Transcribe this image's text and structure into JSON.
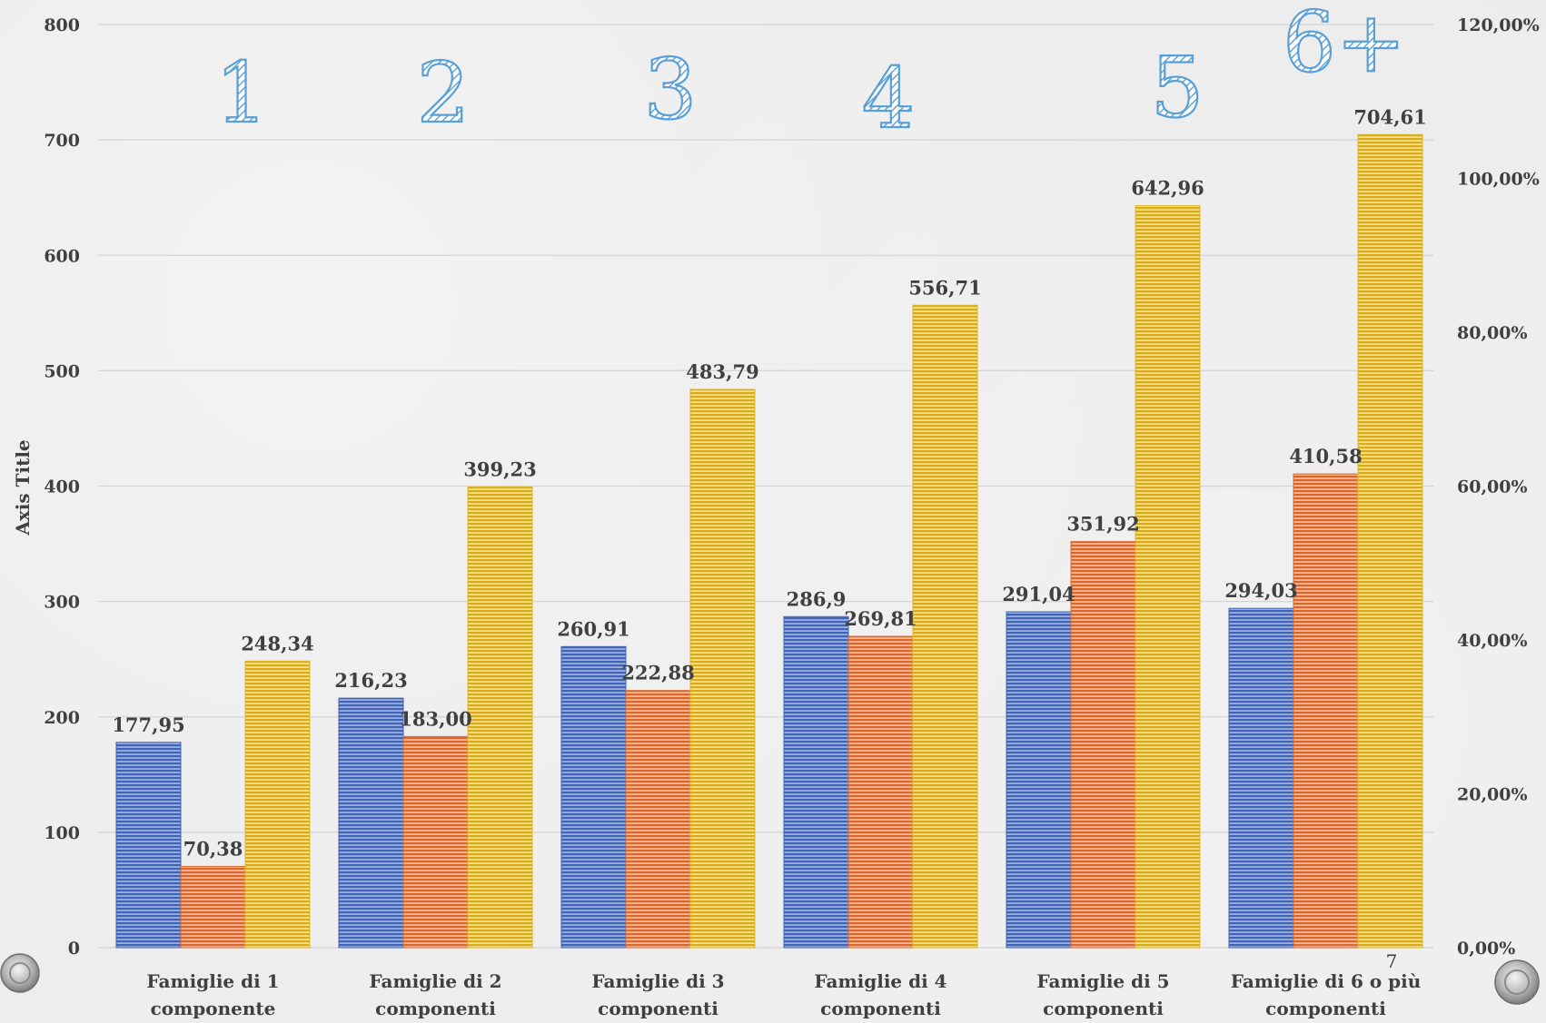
{
  "chart_data": {
    "type": "bar",
    "ylabel": "Axis Title",
    "ylim": [
      0,
      800
    ],
    "y_ticks": [
      "0",
      "100",
      "200",
      "300",
      "400",
      "500",
      "600",
      "700",
      "800"
    ],
    "y_tick_values": [
      0,
      100,
      200,
      300,
      400,
      500,
      600,
      700,
      800
    ],
    "y2_ticks": [
      "0,00%",
      "20,00%",
      "40,00%",
      "60,00%",
      "80,00%",
      "100,00%",
      "120,00%"
    ],
    "y2_tick_values": [
      0,
      20,
      40,
      60,
      80,
      100,
      120
    ],
    "y2lim": [
      0,
      120
    ],
    "grid": true,
    "categories": [
      [
        "Famiglie di 1",
        "componente"
      ],
      [
        "Famiglie di 2",
        "componenti"
      ],
      [
        "Famiglie di 3",
        "componenti"
      ],
      [
        "Famiglie di 4",
        "componenti"
      ],
      [
        "Famiglie di 5",
        "componenti"
      ],
      [
        "Famiglie di 6 o più",
        "componenti"
      ]
    ],
    "series": [
      {
        "color": "#3f63b5",
        "values": [
          177.95,
          216.23,
          260.91,
          286.9,
          291.04,
          294.03
        ],
        "labels": [
          "177,95",
          "216,23",
          "260,91",
          "286,9",
          "291,04",
          "294,03"
        ]
      },
      {
        "color": "#d9672e",
        "values": [
          70.38,
          183.0,
          222.88,
          269.81,
          351.92,
          410.58
        ],
        "labels": [
          "70,38",
          "183,00",
          "222,88",
          "269,81",
          "351,92",
          "410,58"
        ]
      },
      {
        "color": "#e0b520",
        "values": [
          248.34,
          399.23,
          483.79,
          556.71,
          642.96,
          704.61
        ],
        "labels": [
          "248,34",
          "399,23",
          "483,79",
          "556,71",
          "642,96",
          "704,61"
        ]
      }
    ],
    "group_annotations": [
      "1",
      "2",
      "3",
      "4",
      "5",
      "6+"
    ]
  },
  "page_number": "7",
  "nav": {
    "prev": "circle-button-icon",
    "next": "circle-button-icon"
  }
}
